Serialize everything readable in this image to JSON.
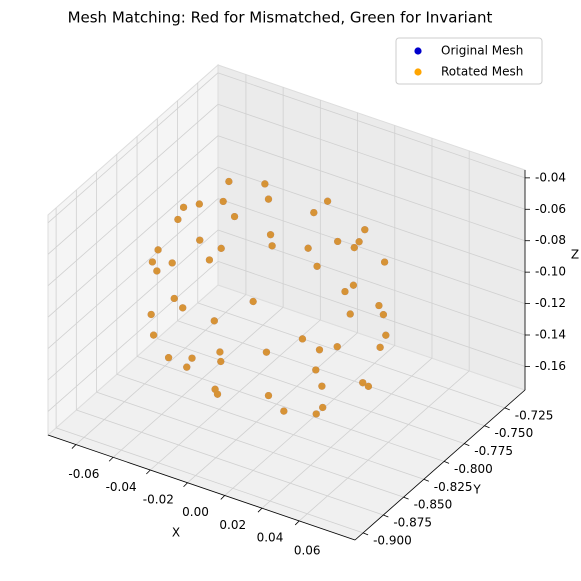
{
  "chart_data": {
    "type": "scatter3d",
    "title": "Mesh Matching: Red for Mismatched, Green for Invariant",
    "xlabel": "X",
    "ylabel": "Y",
    "zlabel": "Z",
    "xlim": [
      -0.075,
      0.09
    ],
    "ylim": [
      -0.91,
      -0.7
    ],
    "zlim": [
      -0.175,
      -0.035
    ],
    "xticks": [
      -0.06,
      -0.04,
      -0.02,
      {
        "value": 0,
        "label": "0.00"
      },
      0.02,
      0.04,
      0.06
    ],
    "yticks": [
      -0.725,
      {
        "value": -0.75,
        "label": "-0.750"
      },
      -0.775,
      {
        "value": -0.8,
        "label": "-0.800"
      },
      -0.825,
      {
        "value": -0.85,
        "label": "-0.850"
      },
      -0.875,
      {
        "value": -0.9,
        "label": "-0.900"
      }
    ],
    "zticks": [
      -0.16,
      -0.14,
      -0.12,
      {
        "value": -0.1,
        "label": "-0.10"
      },
      -0.08,
      -0.06,
      -0.04
    ],
    "grid": true,
    "legend": "upper right",
    "series": [
      {
        "name": "Original Mesh",
        "color": "#0000cc",
        "x": [
          0.0,
          0.02,
          -0.02,
          0.03,
          -0.03,
          0.04,
          -0.04,
          0.01,
          -0.01,
          0.05,
          -0.05,
          0.03,
          -0.03,
          0.055,
          -0.055,
          0.02,
          -0.02,
          0.045,
          -0.045,
          0.04,
          -0.04,
          0.06,
          -0.06,
          0.0,
          0.0,
          0.04,
          -0.04,
          0.045,
          -0.045,
          0.055,
          -0.055,
          0.02,
          -0.02,
          0.03,
          -0.03,
          0.045,
          -0.045,
          0.01,
          -0.01,
          0.03,
          -0.03,
          0.0,
          0.015,
          -0.015,
          0.035,
          -0.035,
          0.05,
          -0.05,
          0.025,
          -0.025,
          0.05,
          -0.05,
          0.015,
          -0.015,
          0.02,
          -0.02,
          0.04,
          -0.04
        ],
        "y": [
          -0.81,
          -0.8,
          -0.82,
          -0.83,
          -0.79,
          -0.79,
          -0.83,
          -0.76,
          -0.86,
          -0.82,
          -0.8,
          -0.76,
          -0.86,
          -0.8,
          -0.82,
          -0.75,
          -0.87,
          -0.77,
          -0.85,
          -0.86,
          -0.76,
          -0.81,
          -0.81,
          -0.75,
          -0.87,
          -0.76,
          -0.86,
          -0.855,
          -0.765,
          -0.82,
          -0.8,
          -0.755,
          -0.865,
          -0.86,
          -0.76,
          -0.79,
          -0.83,
          -0.77,
          -0.85,
          -0.82,
          -0.8,
          -0.81,
          -0.84,
          -0.78,
          -0.805,
          -0.815,
          -0.84,
          -0.78,
          -0.87,
          -0.75,
          -0.78,
          -0.84,
          -0.75,
          -0.87,
          -0.79,
          -0.83,
          -0.835,
          -0.785
        ],
        "z": [
          -0.04,
          -0.045,
          -0.045,
          -0.05,
          -0.05,
          -0.06,
          -0.06,
          -0.06,
          -0.06,
          -0.07,
          -0.07,
          -0.07,
          -0.07,
          -0.09,
          -0.09,
          -0.09,
          -0.09,
          -0.08,
          -0.08,
          -0.09,
          -0.09,
          -0.11,
          -0.11,
          -0.11,
          -0.11,
          -0.12,
          -0.12,
          -0.11,
          -0.11,
          -0.13,
          -0.13,
          -0.13,
          -0.13,
          -0.14,
          -0.14,
          -0.15,
          -0.15,
          -0.15,
          -0.15,
          -0.16,
          -0.16,
          -0.165,
          -0.05,
          -0.05,
          -0.055,
          -0.055,
          -0.1,
          -0.1,
          -0.1,
          -0.1,
          -0.12,
          -0.12,
          -0.12,
          -0.12,
          -0.16,
          -0.16,
          -0.145,
          -0.145
        ]
      },
      {
        "name": "Rotated Mesh",
        "color": "#ffa500",
        "x": [
          0.0,
          0.02,
          -0.02,
          0.03,
          -0.03,
          0.04,
          -0.04,
          0.01,
          -0.01,
          0.05,
          -0.05,
          0.03,
          -0.03,
          0.055,
          -0.055,
          0.02,
          -0.02,
          0.045,
          -0.045,
          0.04,
          -0.04,
          0.06,
          -0.06,
          0.0,
          0.0,
          0.04,
          -0.04,
          0.045,
          -0.045,
          0.055,
          -0.055,
          0.02,
          -0.02,
          0.03,
          -0.03,
          0.045,
          -0.045,
          0.01,
          -0.01,
          0.03,
          -0.03,
          0.0,
          0.015,
          -0.015,
          0.035,
          -0.035,
          0.05,
          -0.05,
          0.025,
          -0.025,
          0.05,
          -0.05,
          0.015,
          -0.015,
          0.02,
          -0.02,
          0.04,
          -0.04
        ],
        "y": [
          -0.81,
          -0.8,
          -0.82,
          -0.83,
          -0.79,
          -0.79,
          -0.83,
          -0.76,
          -0.86,
          -0.82,
          -0.8,
          -0.76,
          -0.86,
          -0.8,
          -0.82,
          -0.75,
          -0.87,
          -0.77,
          -0.85,
          -0.86,
          -0.76,
          -0.81,
          -0.81,
          -0.75,
          -0.87,
          -0.76,
          -0.86,
          -0.855,
          -0.765,
          -0.82,
          -0.8,
          -0.755,
          -0.865,
          -0.86,
          -0.76,
          -0.79,
          -0.83,
          -0.77,
          -0.85,
          -0.82,
          -0.8,
          -0.81,
          -0.84,
          -0.78,
          -0.805,
          -0.815,
          -0.84,
          -0.78,
          -0.87,
          -0.75,
          -0.78,
          -0.84,
          -0.75,
          -0.87,
          -0.79,
          -0.83,
          -0.835,
          -0.785
        ],
        "z": [
          -0.04,
          -0.045,
          -0.045,
          -0.05,
          -0.05,
          -0.06,
          -0.06,
          -0.06,
          -0.06,
          -0.07,
          -0.07,
          -0.07,
          -0.07,
          -0.09,
          -0.09,
          -0.09,
          -0.09,
          -0.08,
          -0.08,
          -0.09,
          -0.09,
          -0.11,
          -0.11,
          -0.11,
          -0.11,
          -0.12,
          -0.12,
          -0.11,
          -0.11,
          -0.13,
          -0.13,
          -0.13,
          -0.13,
          -0.14,
          -0.14,
          -0.15,
          -0.15,
          -0.15,
          -0.15,
          -0.16,
          -0.16,
          -0.165,
          -0.05,
          -0.05,
          -0.055,
          -0.055,
          -0.1,
          -0.1,
          -0.1,
          -0.1,
          -0.12,
          -0.12,
          -0.12,
          -0.12,
          -0.16,
          -0.16,
          -0.145,
          -0.145
        ]
      }
    ]
  }
}
